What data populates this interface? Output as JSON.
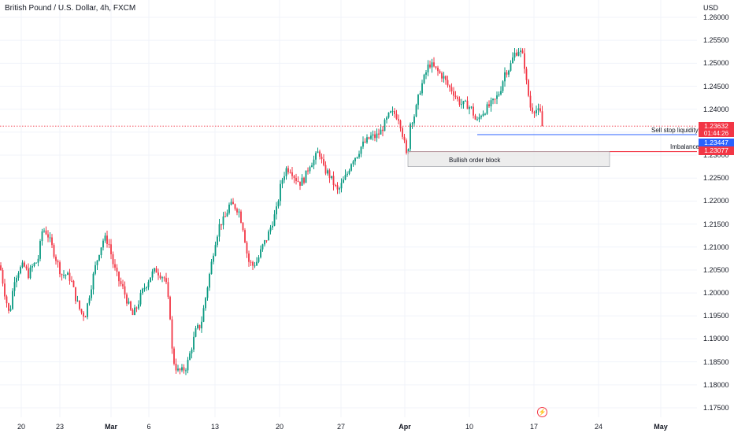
{
  "header": {
    "title": "British Pound / U.S. Dollar, 4h, FXCM",
    "currency": "USD"
  },
  "price_axis": {
    "ticks": [
      "1.26000",
      "1.25500",
      "1.25000",
      "1.24500",
      "1.24000",
      "1.23500",
      "1.23000",
      "1.22500",
      "1.22000",
      "1.21500",
      "1.21000",
      "1.20500",
      "1.20000",
      "1.19500",
      "1.19000",
      "1.18500",
      "1.18000",
      "1.17500"
    ]
  },
  "time_axis": {
    "ticks": [
      {
        "label": "20",
        "bold": false
      },
      {
        "label": "23",
        "bold": false
      },
      {
        "label": "Mar",
        "bold": true
      },
      {
        "label": "6",
        "bold": false
      },
      {
        "label": "13",
        "bold": false
      },
      {
        "label": "20",
        "bold": false
      },
      {
        "label": "27",
        "bold": false
      },
      {
        "label": "Apr",
        "bold": true
      },
      {
        "label": "10",
        "bold": false
      },
      {
        "label": "17",
        "bold": false
      },
      {
        "label": "24",
        "bold": false
      },
      {
        "label": "May",
        "bold": true
      }
    ]
  },
  "annotations": {
    "sell_stop": "Sell stop liquidity",
    "imbalance": "Imbalance",
    "order_block": "Bullish order block"
  },
  "price_tags": {
    "last": "1.23632",
    "countdown": "01:44:26",
    "liquidity": "1.23447",
    "imbalance": "1.23077"
  },
  "colors": {
    "up": "#089981",
    "down": "#f23645",
    "line_blue": "#2962ff",
    "line_red": "#f23645"
  },
  "icons": {
    "logo": "tradingview-bolt-icon"
  },
  "chart_data": {
    "type": "candlestick",
    "symbol": "GBPUSD",
    "interval": "4h",
    "ylim": [
      1.175,
      1.26
    ],
    "path_keypoints": [
      [
        0,
        1.206
      ],
      [
        6,
        1.2
      ],
      [
        12,
        1.195
      ],
      [
        18,
        1.203
      ],
      [
        24,
        1.205
      ],
      [
        30,
        1.206
      ],
      [
        36,
        1.204
      ],
      [
        42,
        1.206
      ],
      [
        48,
        1.207
      ],
      [
        54,
        1.214
      ],
      [
        60,
        1.213
      ],
      [
        66,
        1.21
      ],
      [
        72,
        1.207
      ],
      [
        78,
        1.204
      ],
      [
        84,
        1.204
      ],
      [
        90,
        1.203
      ],
      [
        96,
        1.199
      ],
      [
        102,
        1.196
      ],
      [
        108,
        1.195
      ],
      [
        114,
        1.2
      ],
      [
        120,
        1.205
      ],
      [
        126,
        1.209
      ],
      [
        132,
        1.212
      ],
      [
        138,
        1.211
      ],
      [
        144,
        1.206
      ],
      [
        150,
        1.203
      ],
      [
        156,
        1.201
      ],
      [
        162,
        1.198
      ],
      [
        168,
        1.195
      ],
      [
        174,
        1.197
      ],
      [
        180,
        1.2
      ],
      [
        186,
        1.202
      ],
      [
        192,
        1.204
      ],
      [
        198,
        1.205
      ],
      [
        204,
        1.204
      ],
      [
        210,
        1.203
      ],
      [
        216,
        1.195
      ],
      [
        219,
        1.186
      ],
      [
        225,
        1.183
      ],
      [
        231,
        1.183
      ],
      [
        237,
        1.184
      ],
      [
        243,
        1.188
      ],
      [
        249,
        1.192
      ],
      [
        255,
        1.193
      ],
      [
        261,
        1.199
      ],
      [
        267,
        1.205
      ],
      [
        273,
        1.211
      ],
      [
        279,
        1.215
      ],
      [
        285,
        1.216
      ],
      [
        291,
        1.219
      ],
      [
        297,
        1.219
      ],
      [
        303,
        1.218
      ],
      [
        309,
        1.214
      ],
      [
        315,
        1.207
      ],
      [
        321,
        1.206
      ],
      [
        327,
        1.207
      ],
      [
        333,
        1.21
      ],
      [
        339,
        1.212
      ],
      [
        345,
        1.215
      ],
      [
        351,
        1.218
      ],
      [
        357,
        1.224
      ],
      [
        363,
        1.227
      ],
      [
        369,
        1.227
      ],
      [
        375,
        1.225
      ],
      [
        381,
        1.224
      ],
      [
        387,
        1.225
      ],
      [
        393,
        1.228
      ],
      [
        399,
        1.229
      ],
      [
        405,
        1.231
      ],
      [
        411,
        1.227
      ],
      [
        417,
        1.226
      ],
      [
        423,
        1.224
      ],
      [
        429,
        1.222
      ],
      [
        435,
        1.224
      ],
      [
        441,
        1.226
      ],
      [
        447,
        1.229
      ],
      [
        453,
        1.23
      ],
      [
        459,
        1.232
      ],
      [
        465,
        1.233
      ],
      [
        471,
        1.234
      ],
      [
        477,
        1.234
      ],
      [
        483,
        1.235
      ],
      [
        489,
        1.237
      ],
      [
        495,
        1.239
      ],
      [
        501,
        1.239
      ],
      [
        507,
        1.238
      ],
      [
        513,
        1.233
      ],
      [
        517,
        1.229
      ],
      [
        521,
        1.237
      ],
      [
        527,
        1.239
      ],
      [
        533,
        1.244
      ],
      [
        539,
        1.247
      ],
      [
        545,
        1.25
      ],
      [
        551,
        1.249
      ],
      [
        557,
        1.248
      ],
      [
        563,
        1.247
      ],
      [
        569,
        1.245
      ],
      [
        575,
        1.244
      ],
      [
        581,
        1.242
      ],
      [
        587,
        1.241
      ],
      [
        593,
        1.241
      ],
      [
        599,
        1.24
      ],
      [
        605,
        1.237
      ],
      [
        611,
        1.239
      ],
      [
        617,
        1.24
      ],
      [
        623,
        1.241
      ],
      [
        629,
        1.242
      ],
      [
        635,
        1.244
      ],
      [
        641,
        1.248
      ],
      [
        647,
        1.249
      ],
      [
        653,
        1.252
      ],
      [
        659,
        1.253
      ],
      [
        665,
        1.251
      ],
      [
        669,
        1.245
      ],
      [
        674,
        1.24
      ],
      [
        680,
        1.24
      ],
      [
        686,
        1.239
      ],
      [
        689,
        1.2363
      ]
    ],
    "levels": {
      "last_price": 1.23632,
      "sell_stop_liquidity": 1.23447,
      "imbalance_high": 1.23077,
      "order_block": {
        "top": 1.2308,
        "bottom": 1.2275
      }
    }
  }
}
